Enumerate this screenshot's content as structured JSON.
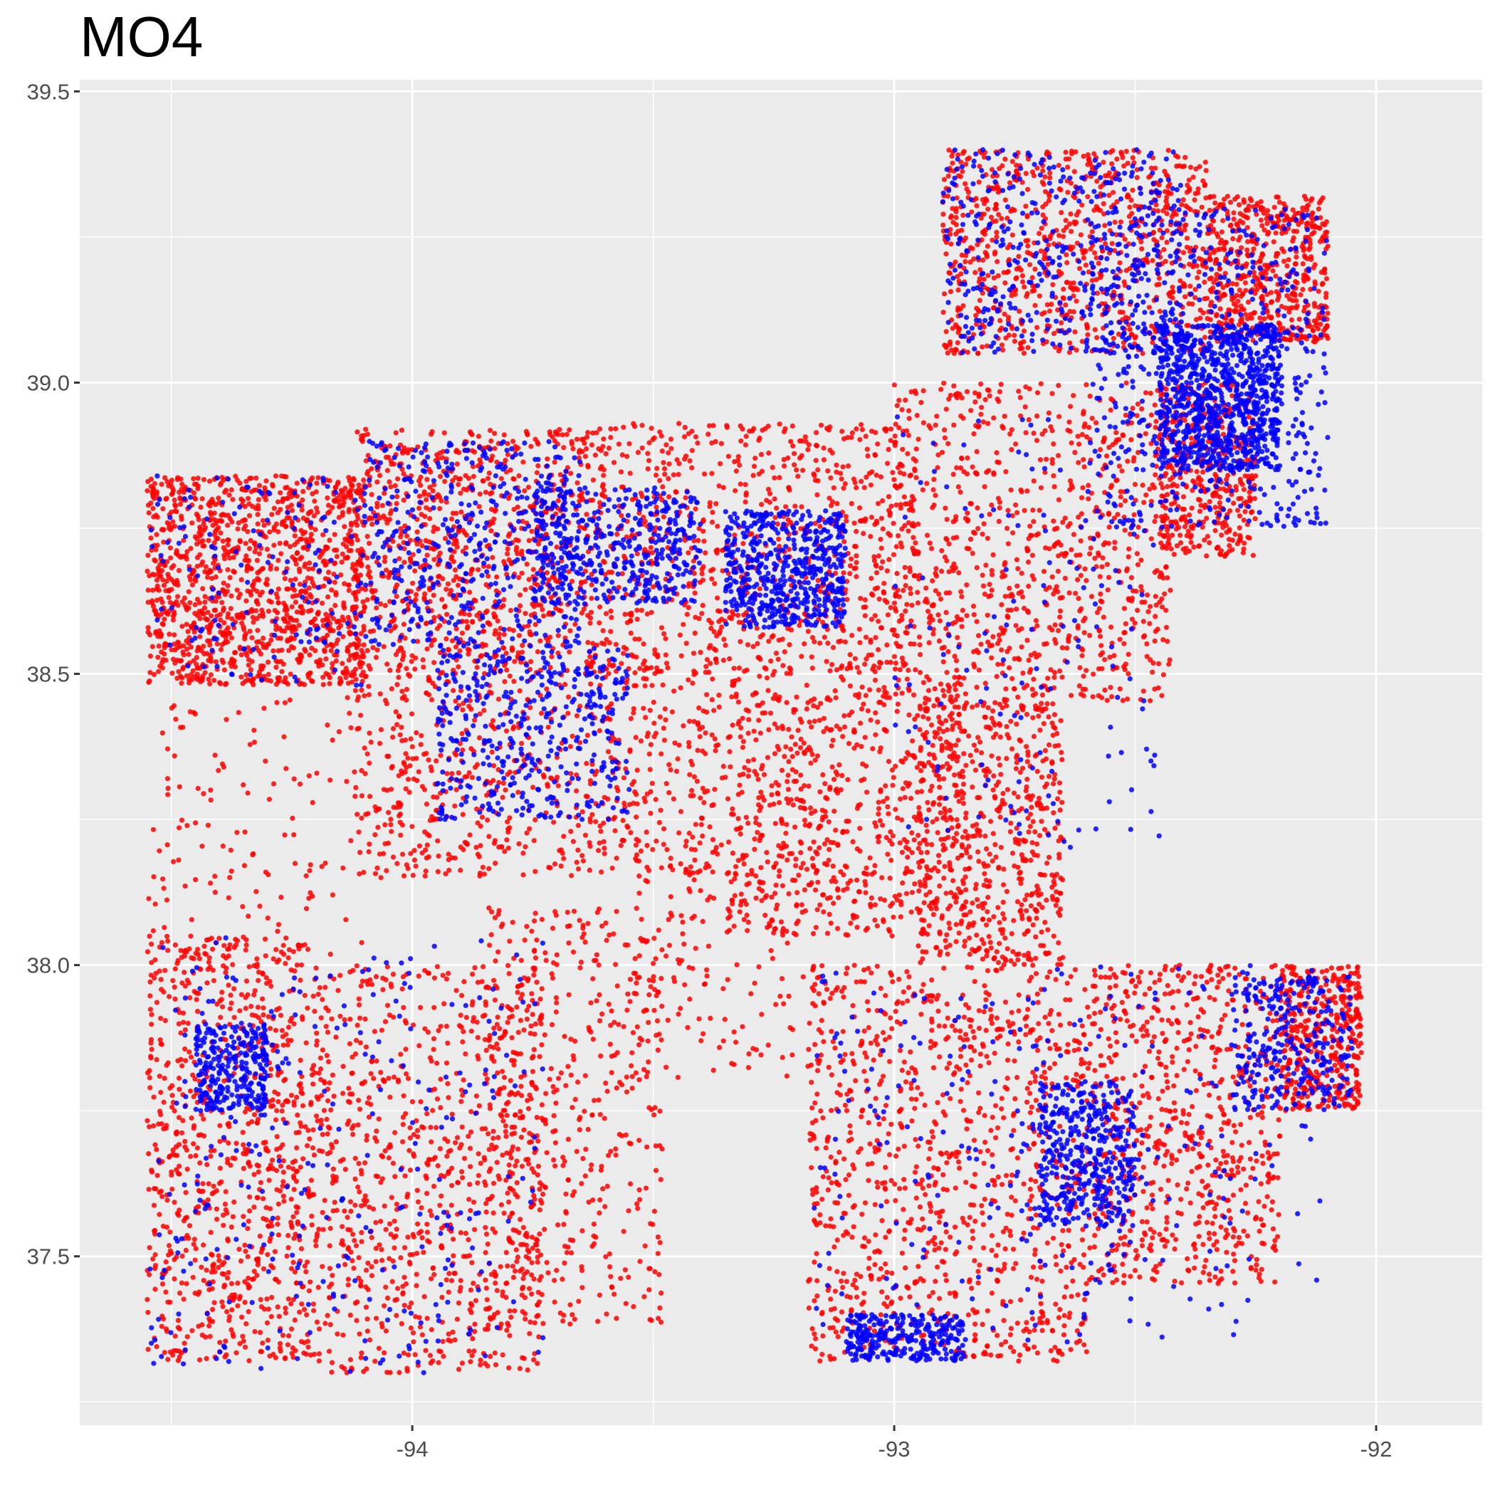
{
  "chart_data": {
    "type": "scatter",
    "title": "MO4",
    "xlabel": "",
    "ylabel": "",
    "xlim": [
      -94.69,
      -91.78
    ],
    "ylim": [
      37.21,
      39.52
    ],
    "x_ticks": [
      -94,
      -93,
      -92
    ],
    "x_tick_labels": [
      "-94",
      "-93",
      "-92"
    ],
    "y_ticks": [
      37.5,
      38.0,
      38.5,
      39.0,
      39.5
    ],
    "y_tick_labels": [
      "37.5",
      "38.0",
      "38.5",
      "39.0",
      "39.5"
    ],
    "grid": true,
    "legend": "none",
    "colors": {
      "panel": "#ebebeb",
      "grid": "#ffffff",
      "red_points": "#ff0000",
      "blue_points": "#0000ff"
    },
    "series": [
      {
        "color": "#ff0000",
        "regions": [
          {
            "x": [
              -94.55,
              -94.1
            ],
            "y": [
              38.48,
              38.84
            ],
            "weight": 9
          },
          {
            "x": [
              -94.12,
              -93.62
            ],
            "y": [
              38.52,
              38.92
            ],
            "weight": 6
          },
          {
            "x": [
              -93.62,
              -92.95
            ],
            "y": [
              38.5,
              38.93
            ],
            "weight": 6
          },
          {
            "x": [
              -93.0,
              -92.42
            ],
            "y": [
              38.45,
              39.0
            ],
            "weight": 6
          },
          {
            "x": [
              -92.9,
              -92.35
            ],
            "y": [
              39.05,
              39.4
            ],
            "weight": 6
          },
          {
            "x": [
              -92.35,
              -92.1
            ],
            "y": [
              39.07,
              39.32
            ],
            "weight": 4
          },
          {
            "x": [
              -92.45,
              -92.25
            ],
            "y": [
              38.7,
              39.0
            ],
            "weight": 3
          },
          {
            "x": [
              -94.12,
              -93.35
            ],
            "y": [
              38.15,
              38.52
            ],
            "weight": 5
          },
          {
            "x": [
              -93.35,
              -92.85
            ],
            "y": [
              38.05,
              38.5
            ],
            "weight": 5
          },
          {
            "x": [
              -92.95,
              -92.65
            ],
            "y": [
              38.0,
              38.45
            ],
            "weight": 4
          },
          {
            "x": [
              -94.55,
              -94.2
            ],
            "y": [
              37.32,
              38.05
            ],
            "weight": 6
          },
          {
            "x": [
              -94.2,
              -93.72
            ],
            "y": [
              37.3,
              38.0
            ],
            "weight": 6
          },
          {
            "x": [
              -93.85,
              -93.48
            ],
            "y": [
              37.38,
              38.1
            ],
            "weight": 3
          },
          {
            "x": [
              -93.18,
              -92.6
            ],
            "y": [
              37.32,
              38.0
            ],
            "weight": 7
          },
          {
            "x": [
              -92.6,
              -92.2
            ],
            "y": [
              37.45,
              38.0
            ],
            "weight": 5
          },
          {
            "x": [
              -92.2,
              -92.03
            ],
            "y": [
              37.75,
              38.0
            ],
            "weight": 3
          },
          {
            "x": [
              -94.55,
              -94.1
            ],
            "y": [
              38.0,
              38.48
            ],
            "weight": 1
          },
          {
            "x": [
              -93.55,
              -93.15
            ],
            "y": [
              37.8,
              38.2
            ],
            "weight": 1
          }
        ]
      },
      {
        "color": "#0000ff",
        "regions": [
          {
            "x": [
              -92.45,
              -92.2
            ],
            "y": [
              38.85,
              39.1
            ],
            "weight": 6
          },
          {
            "x": [
              -92.6,
              -92.1
            ],
            "y": [
              38.75,
              39.3
            ],
            "weight": 4
          },
          {
            "x": [
              -93.35,
              -93.1
            ],
            "y": [
              38.58,
              38.78
            ],
            "weight": 4
          },
          {
            "x": [
              -93.75,
              -93.4
            ],
            "y": [
              38.62,
              38.82
            ],
            "weight": 3
          },
          {
            "x": [
              -94.1,
              -93.65
            ],
            "y": [
              38.55,
              38.9
            ],
            "weight": 3
          },
          {
            "x": [
              -93.95,
              -93.55
            ],
            "y": [
              38.25,
              38.55
            ],
            "weight": 3
          },
          {
            "x": [
              -92.9,
              -92.4
            ],
            "y": [
              39.05,
              39.4
            ],
            "weight": 3
          },
          {
            "x": [
              -92.7,
              -92.5
            ],
            "y": [
              37.55,
              37.8
            ],
            "weight": 3
          },
          {
            "x": [
              -92.3,
              -92.05
            ],
            "y": [
              37.75,
              37.98
            ],
            "weight": 2
          },
          {
            "x": [
              -93.1,
              -92.85
            ],
            "y": [
              37.32,
              37.4
            ],
            "weight": 2
          },
          {
            "x": [
              -94.45,
              -94.3
            ],
            "y": [
              37.75,
              37.9
            ],
            "weight": 2
          },
          {
            "x": [
              -94.55,
              -93.72
            ],
            "y": [
              37.3,
              38.05
            ],
            "weight": 2
          },
          {
            "x": [
              -93.18,
              -92.1
            ],
            "y": [
              37.35,
              38.0
            ],
            "weight": 2
          },
          {
            "x": [
              -94.55,
              -94.1
            ],
            "y": [
              38.48,
              38.84
            ],
            "weight": 1
          },
          {
            "x": [
              -93.0,
              -92.45
            ],
            "y": [
              38.2,
              38.95
            ],
            "weight": 1
          }
        ]
      }
    ]
  }
}
